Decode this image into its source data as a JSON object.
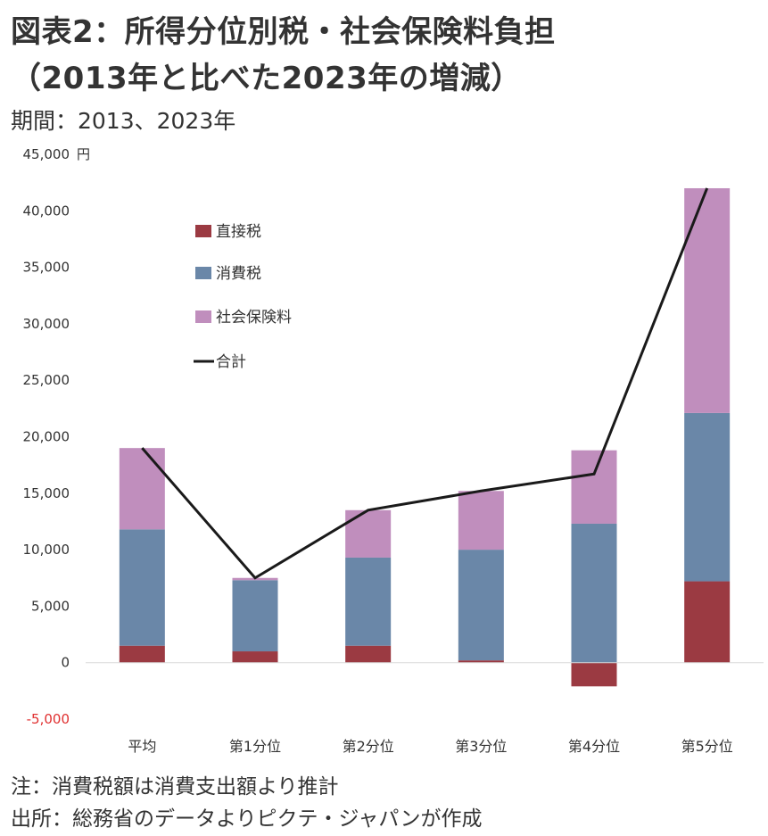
{
  "title_line1": "図表2：所得分位別税・社会保険料負担",
  "title_line2": "（2013年と比べた2023年の増減）",
  "subtitle": "期間：2013、2023年",
  "note": "注：消費税額は消費支出額より推計",
  "source": "出所：総務省のデータよりピクテ・ジャパンが作成",
  "colors": {
    "direct_tax": "#9b3a42",
    "consumption_tax": "#6a87a8",
    "social_insurance": "#c08ebd",
    "total": "#1a1a1a",
    "negative_tick": "#e03030"
  },
  "chart_data": {
    "type": "bar",
    "stacked": true,
    "categories": [
      "平均",
      "第1分位",
      "第2分位",
      "第3分位",
      "第4分位",
      "第5分位"
    ],
    "series": [
      {
        "name": "直接税",
        "type": "bar",
        "values": [
          1500,
          1000,
          1500,
          200,
          -2100,
          7200
        ]
      },
      {
        "name": "消費税",
        "type": "bar",
        "values": [
          10300,
          6300,
          7800,
          9800,
          12300,
          14900
        ]
      },
      {
        "name": "社会保険料",
        "type": "bar",
        "values": [
          7200,
          200,
          4200,
          5200,
          6500,
          19900
        ]
      },
      {
        "name": "合計",
        "type": "line",
        "values": [
          19000,
          7500,
          13500,
          15200,
          16700,
          42000
        ]
      }
    ],
    "y_unit": "円",
    "ylim": [
      -5000,
      45000
    ],
    "yticks": [
      -5000,
      0,
      5000,
      10000,
      15000,
      20000,
      25000,
      30000,
      35000,
      40000,
      45000
    ],
    "ytick_labels": [
      "-5,000",
      "0",
      "5,000",
      "10,000",
      "15,000",
      "20,000",
      "25,000",
      "30,000",
      "35,000",
      "40,000",
      "45,000"
    ],
    "grid": false,
    "legend_position": "top-left"
  }
}
